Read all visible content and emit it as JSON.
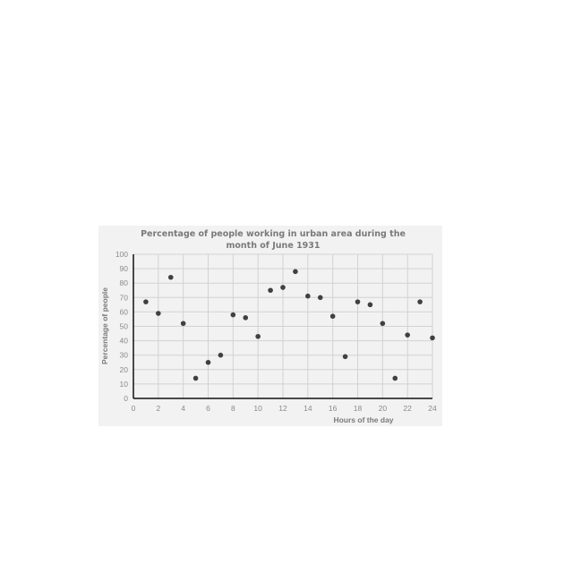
{
  "chart_data": {
    "type": "scatter",
    "title_lines": [
      "Percentage of people working in urban area during the",
      "month of June 1931"
    ],
    "xlabel": "Hours of the day",
    "ylabel": "Percentage of people",
    "xlim": [
      0,
      24
    ],
    "ylim": [
      0,
      100
    ],
    "x_ticks": [
      "0",
      "2",
      "4",
      "6",
      "8",
      "10",
      "12",
      "14",
      "16",
      "18",
      "20",
      "22",
      "24"
    ],
    "y_ticks": [
      "0",
      "10",
      "20",
      "30",
      "40",
      "50",
      "60",
      "70",
      "80",
      "90",
      "100"
    ],
    "grid": true,
    "points": [
      {
        "x": 1,
        "y": 67
      },
      {
        "x": 2,
        "y": 59
      },
      {
        "x": 3,
        "y": 84
      },
      {
        "x": 4,
        "y": 52
      },
      {
        "x": 5,
        "y": 14
      },
      {
        "x": 6,
        "y": 25
      },
      {
        "x": 7,
        "y": 30
      },
      {
        "x": 8,
        "y": 58
      },
      {
        "x": 9,
        "y": 56
      },
      {
        "x": 10,
        "y": 43
      },
      {
        "x": 11,
        "y": 75
      },
      {
        "x": 12,
        "y": 77
      },
      {
        "x": 13,
        "y": 88
      },
      {
        "x": 14,
        "y": 71
      },
      {
        "x": 15,
        "y": 70
      },
      {
        "x": 16,
        "y": 57
      },
      {
        "x": 17,
        "y": 29
      },
      {
        "x": 18,
        "y": 67
      },
      {
        "x": 19,
        "y": 65
      },
      {
        "x": 20,
        "y": 52
      },
      {
        "x": 21,
        "y": 14
      },
      {
        "x": 22,
        "y": 44
      },
      {
        "x": 23,
        "y": 67
      },
      {
        "x": 24,
        "y": 42
      }
    ],
    "colors": {
      "point": "#404040",
      "grid": "#d2d2d2",
      "axis": "#111111",
      "background": "#f2f2f2"
    }
  }
}
